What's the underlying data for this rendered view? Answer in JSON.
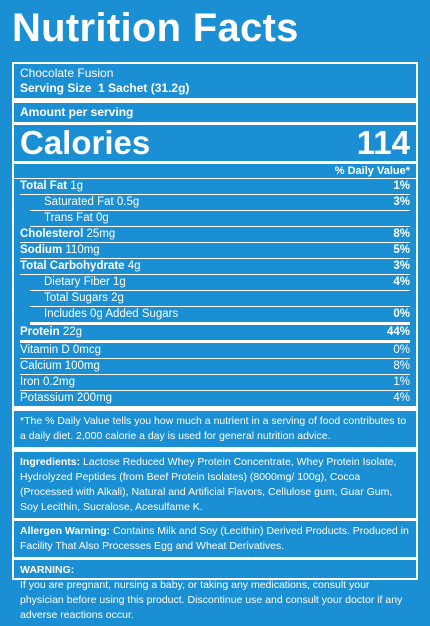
{
  "title": "Nutrition Facts",
  "product": "Chocolate Fusion",
  "serving_size": {
    "label": "Serving Size",
    "value": "1 Sachet (31.2g)"
  },
  "amount_per_serving": "Amount per serving",
  "calories": {
    "label": "Calories",
    "value": 114
  },
  "dv_header": "% Daily Value*",
  "nutrients": [
    {
      "name": "Total Fat",
      "amount": "1g",
      "dv": "1%"
    },
    {
      "name": "Saturated Fat",
      "amount": "0.5g",
      "dv": "3%"
    },
    {
      "name": "Trans Fat",
      "amount": "0g"
    },
    {
      "name": "Cholesterol",
      "amount": "25mg",
      "dv": "8%"
    },
    {
      "name": "Sodium",
      "amount": "110mg",
      "dv": "5%"
    },
    {
      "name": "Total Carbohydrate",
      "amount": "4g",
      "dv": "3%"
    },
    {
      "name": "Dietary Fiber",
      "amount": "1g",
      "dv": "4%"
    },
    {
      "name": "Total Sugars",
      "amount": "2g"
    },
    {
      "name": "Includes 0g Added Sugars",
      "dv": "0%"
    },
    {
      "name": "Protein",
      "amount": "22g",
      "dv": "44%"
    }
  ],
  "vitamins": [
    {
      "name": "Vitamin D",
      "amount": "0mcg",
      "dv": "0%"
    },
    {
      "name": "Calcium",
      "amount": "100mg",
      "dv": "8%"
    },
    {
      "name": "Iron",
      "amount": "0.2mg",
      "dv": "1%"
    },
    {
      "name": "Potassium",
      "amount": "200mg",
      "dv": "4%"
    }
  ],
  "footnote": "*The % Daily Value tells you how much a nutrient in a serving of food contributes to a daily diet. 2,000 calorie a day is used for general nutrition advice.",
  "ingredients": {
    "label": "Ingredients:",
    "text": "Lactose Reduced Whey Protein Concentrate, Whey Protein Isolate, Hydrolyzed Peptides (from Beef Protein Isolates) (8000mg/ 100g), Cocoa (Processed with Alkali), Natural and Artificial Flavors, Cellulose gum, Guar Gum, Soy Lecithin, Sucralose, Acesulfame K."
  },
  "allergen": {
    "label": "Allergen Warning:",
    "text": "Contains Milk and Soy (Lecithin) Derived Products. Produced in Facility That Also Processes Egg and Wheat Derivatives."
  },
  "warning": {
    "label": "WARNING:",
    "text": "If you are pregnant, nursing a baby, or taking any medications, consult your physician before using this product. Discontinue use and consult your doctor if any adverse reactions occur."
  }
}
